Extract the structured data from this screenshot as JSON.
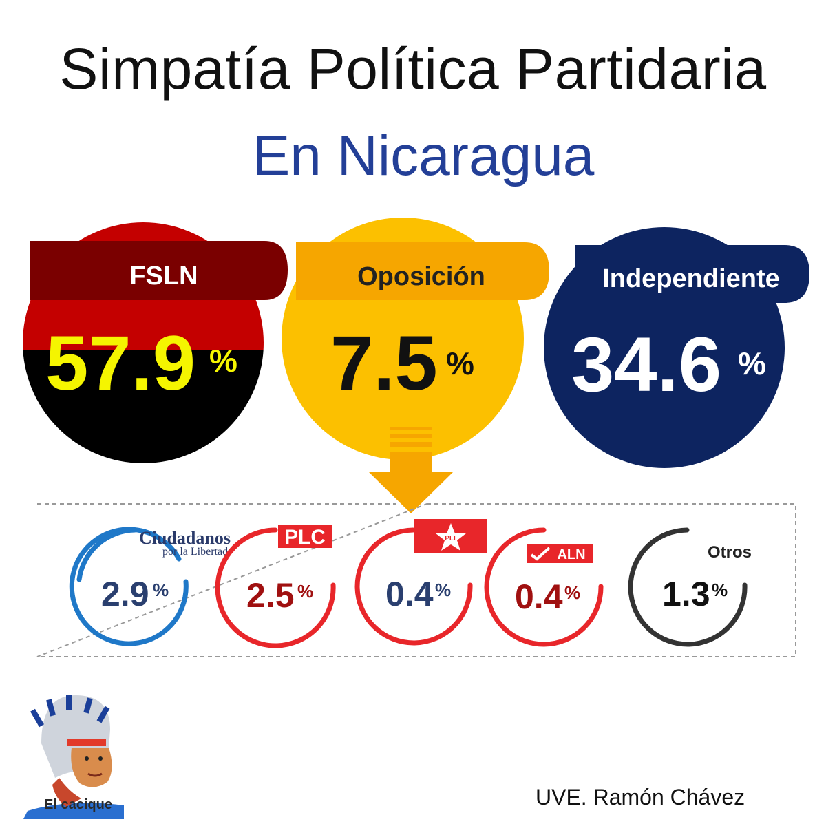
{
  "title": "Simpatía Política Partidaria",
  "subtitle": "En Nicaragua",
  "credit": "UVE. Ramón Chávez",
  "logo_text": "El cacique",
  "colors": {
    "fsln_red": "#c40000",
    "fsln_dark": "#7a0000",
    "opposition_yellow": "#fcc000",
    "opposition_orange": "#f6a600",
    "independent_navy": "#0d2460",
    "cxl_blue": "#1f78c8",
    "red_ring": "#e8262a",
    "dark_ring": "#333333"
  },
  "chart_data": [
    {
      "type": "pie",
      "categories": [
        "FSLN",
        "Oposición",
        "Independiente"
      ],
      "values": [
        57.9,
        7.5,
        34.6
      ],
      "value_labels": [
        "57.9",
        "7.5",
        "34.6"
      ],
      "unit": "%"
    },
    {
      "type": "pie",
      "categories": [
        "Ciudadanos por la Libertad",
        "PLC",
        "PLI",
        "ALN",
        "Otros"
      ],
      "logo_labels": [
        "Ciudadanos",
        "por la Libertad",
        "PLC",
        "PLI",
        "ALN",
        "Otros"
      ],
      "values": [
        2.9,
        2.5,
        0.4,
        0.4,
        1.3
      ],
      "value_labels": [
        "2.9",
        "2.5",
        "0.4",
        "0.4",
        "1.3"
      ],
      "unit": "%"
    }
  ]
}
